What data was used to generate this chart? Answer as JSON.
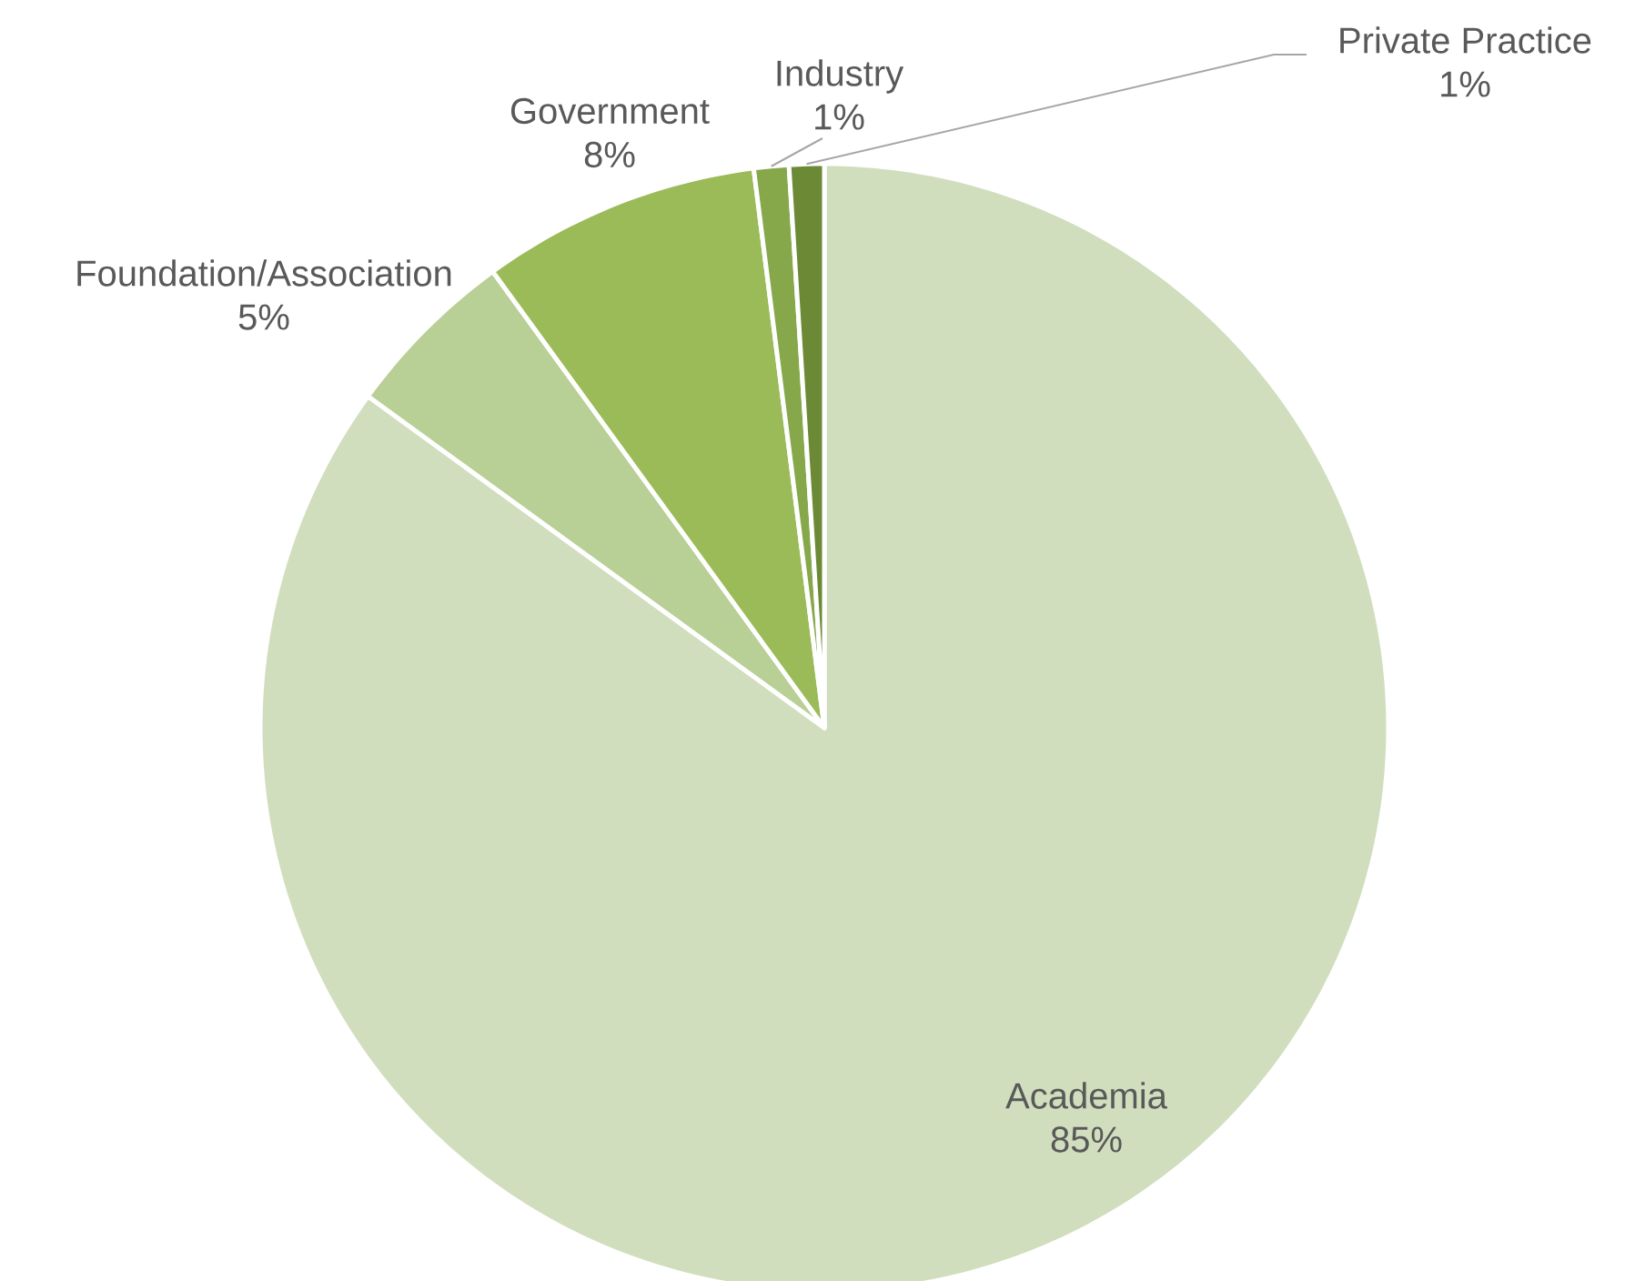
{
  "chart_data": {
    "type": "pie",
    "categories": [
      "Academia",
      "Foundation/Association",
      "Government",
      "Industry",
      "Private Practice"
    ],
    "values": [
      85,
      5,
      8,
      1,
      1
    ],
    "value_labels": [
      "85%",
      "5%",
      "8%",
      "1%",
      "1%"
    ],
    "colors": [
      "#d1debe",
      "#b8cf96",
      "#9bbb59",
      "#86a84a",
      "#6c8a36"
    ]
  }
}
